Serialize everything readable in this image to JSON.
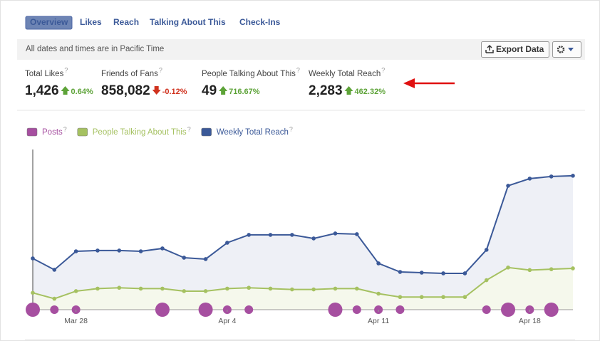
{
  "tabs": [
    "Overview",
    "Likes",
    "Reach",
    "Talking About This",
    "Check-Ins"
  ],
  "timezone_note": "All dates and times are in Pacific Time",
  "export_button": "Export Data",
  "help": "?",
  "stats": [
    {
      "label": "Total Likes",
      "value": "1,426",
      "change": "0.64%"
    },
    {
      "label": "Friends of Fans",
      "value": "858,082",
      "change": "-0.12%"
    },
    {
      "label": "People Talking About This",
      "value": "49",
      "change": "716.67%"
    },
    {
      "label": "Weekly Total Reach",
      "value": "2,283",
      "change": "462.32%"
    }
  ],
  "chart_data": {
    "type": "line",
    "categories": [
      null,
      null,
      "Mar 28",
      null,
      null,
      null,
      null,
      null,
      null,
      "Apr 4",
      null,
      null,
      null,
      null,
      null,
      null,
      "Apr 11",
      null,
      null,
      null,
      null,
      null,
      null,
      "Apr 18",
      null,
      null
    ],
    "series": [
      {
        "name": "Posts",
        "color": "#a64fa0",
        "type": "bubble",
        "values": [
          2,
          1,
          1,
          0,
          0,
          0,
          2,
          0,
          2,
          1,
          1,
          0,
          0,
          0,
          2,
          1,
          1,
          1,
          0,
          0,
          0,
          1,
          2,
          1,
          2,
          0
        ]
      },
      {
        "name": "People Talking About This",
        "color": "#a5c161",
        "axis": "y2",
        "values": [
          20,
          13,
          22,
          25,
          26,
          25,
          25,
          22,
          22,
          25,
          26,
          25,
          24,
          24,
          25,
          25,
          19,
          15,
          15,
          15,
          15,
          35,
          50,
          47,
          48,
          49
        ]
      },
      {
        "name": "Weekly Total Reach",
        "color": "#3b5998",
        "values": [
          874,
          680,
          995,
          1008,
          1008,
          995,
          1044,
          886,
          862,
          1141,
          1275,
          1275,
          1275,
          1214,
          1299,
          1287,
          789,
          643,
          631,
          619,
          619,
          1020,
          2112,
          2234,
          2270,
          2283
        ]
      }
    ],
    "ylim": [
      0,
      2730
    ],
    "y2lim": [
      0,
      190
    ]
  }
}
